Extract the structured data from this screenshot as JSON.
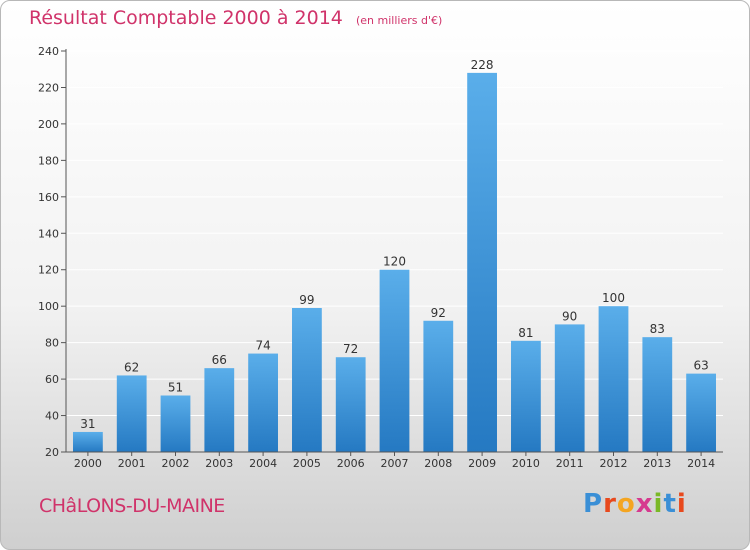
{
  "header": {
    "title": "Résultat Comptable 2000 à 2014",
    "subtitle": "(en milliers d'€)"
  },
  "footer": {
    "commune": "CHâLONS-DU-MAINE",
    "logo_letters": [
      "P",
      "r",
      "o",
      "x",
      "i",
      "t",
      "i"
    ],
    "logo_colors": [
      "#3a8fd6",
      "#e8491d",
      "#f4a521",
      "#d63a8f",
      "#7ab826",
      "#3a8fd6",
      "#e8491d"
    ]
  },
  "colors": {
    "bar_top": "#5aaeea",
    "bar_bottom": "#2579c2",
    "title": "#d0336a",
    "axis": "#555555",
    "grid": "#ffffff"
  },
  "chart_data": {
    "type": "bar",
    "categories": [
      "2000",
      "2001",
      "2002",
      "2003",
      "2004",
      "2005",
      "2006",
      "2007",
      "2008",
      "2009",
      "2010",
      "2011",
      "2012",
      "2013",
      "2014"
    ],
    "values": [
      31,
      62,
      51,
      66,
      74,
      99,
      72,
      120,
      92,
      228,
      81,
      90,
      100,
      83,
      63
    ],
    "ylim": [
      20,
      240
    ],
    "yticks": [
      20,
      40,
      60,
      80,
      100,
      120,
      140,
      160,
      180,
      200,
      220,
      240
    ],
    "grid": true,
    "data_labels": true
  }
}
